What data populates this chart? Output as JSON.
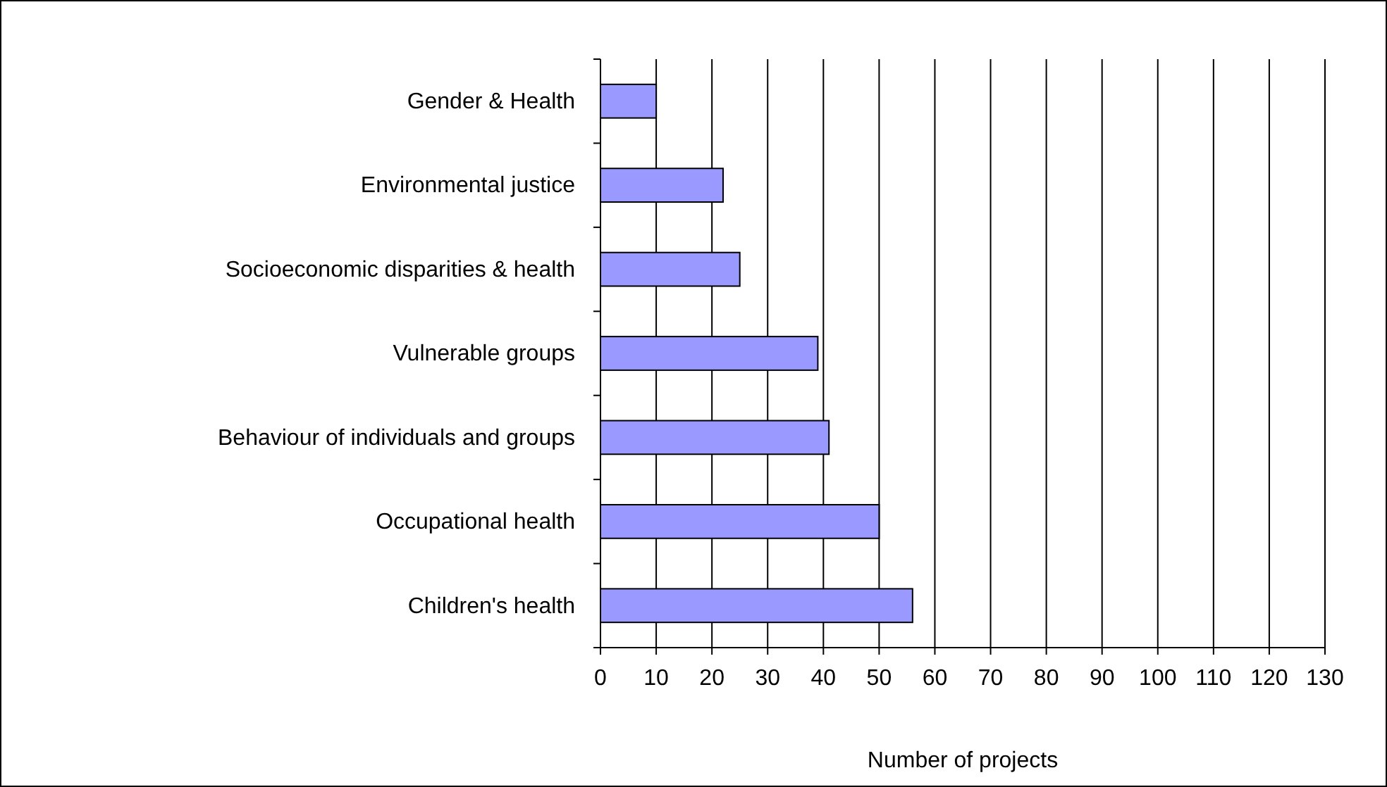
{
  "chart_data": {
    "type": "bar",
    "orientation": "horizontal",
    "xlabel": "Number of projects",
    "categories": [
      "Gender & Health",
      "Environmental justice",
      "Socioeconomic disparities & health",
      "Vulnerable groups",
      "Behaviour of individuals and groups",
      "Occupational health",
      "Children's health"
    ],
    "values": [
      10,
      22,
      25,
      39,
      41,
      50,
      56
    ],
    "color": "#9999ff",
    "xlim": [
      0,
      130
    ],
    "xticks": [
      0,
      10,
      20,
      30,
      40,
      50,
      60,
      70,
      80,
      90,
      100,
      110,
      120,
      130
    ],
    "grid": "x"
  }
}
